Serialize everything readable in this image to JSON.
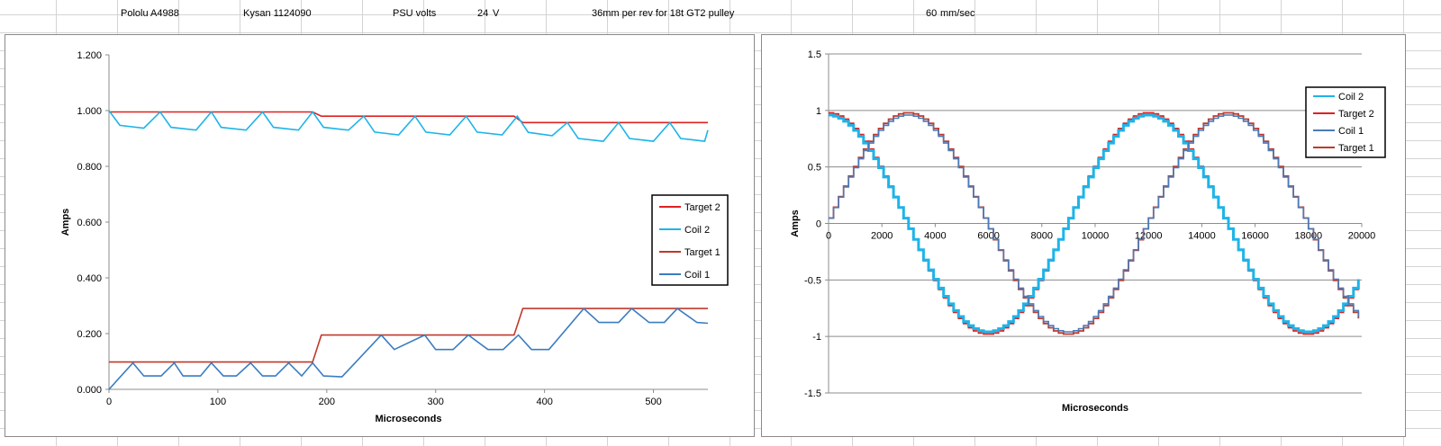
{
  "header": {
    "driver": "Pololu A4988",
    "motor": "Kysan 1124090",
    "psu_label": "PSU volts",
    "psu_value": "24",
    "psu_unit": "V",
    "pulley_note": "36mm per rev for 18t GT2 pulley",
    "speed_value": "60",
    "speed_unit": "mm/sec"
  },
  "chart_data": [
    {
      "type": "line",
      "title": "",
      "xlabel": "Microseconds",
      "ylabel": "Amps",
      "xlim": [
        0,
        550
      ],
      "ylim": [
        0,
        1.2
      ],
      "xticks": [
        0,
        100,
        200,
        300,
        400,
        500
      ],
      "xtick_labels": [
        "0",
        "100",
        "200",
        "300",
        "400",
        "500"
      ],
      "yticks": [
        0,
        0.2,
        0.4,
        0.6,
        0.8,
        1.0,
        1.2
      ],
      "ytick_labels": [
        "0.000",
        "0.200",
        "0.400",
        "0.600",
        "0.800",
        "1.000",
        "1.200"
      ],
      "grid": false,
      "legend_position": "right",
      "series": [
        {
          "name": "Target 2",
          "color": "#e02020",
          "x": [
            0,
            187,
            195,
            372,
            380,
            550
          ],
          "y": [
            0.995,
            0.995,
            0.98,
            0.98,
            0.957,
            0.957
          ]
        },
        {
          "name": "Coil 2",
          "color": "#1eb4e8",
          "x": [
            0,
            10,
            32,
            47,
            57,
            80,
            94,
            103,
            126,
            141,
            151,
            174,
            187,
            197,
            220,
            234,
            244,
            266,
            281,
            291,
            313,
            328,
            338,
            361,
            375,
            385,
            407,
            421,
            431,
            454,
            468,
            478,
            500,
            515,
            525,
            547,
            550
          ],
          "y": [
            1.0,
            0.947,
            0.937,
            0.995,
            0.94,
            0.93,
            0.995,
            0.94,
            0.93,
            0.995,
            0.94,
            0.93,
            0.995,
            0.94,
            0.93,
            0.98,
            0.923,
            0.913,
            0.98,
            0.923,
            0.913,
            0.98,
            0.923,
            0.913,
            0.98,
            0.922,
            0.91,
            0.957,
            0.9,
            0.89,
            0.957,
            0.9,
            0.89,
            0.957,
            0.9,
            0.89,
            0.93
          ]
        },
        {
          "name": "Target 1",
          "color": "#c0392b",
          "x": [
            0,
            187,
            195,
            372,
            380,
            550
          ],
          "y": [
            0.098,
            0.098,
            0.195,
            0.195,
            0.29,
            0.29
          ]
        },
        {
          "name": "Coil 1",
          "color": "#3a7cc0",
          "x": [
            0,
            22,
            32,
            48,
            60,
            68,
            84,
            94,
            105,
            117,
            130,
            141,
            153,
            165,
            177,
            187,
            197,
            214,
            250,
            262,
            290,
            300,
            316,
            330,
            348,
            362,
            376,
            388,
            404,
            436,
            450,
            468,
            480,
            496,
            510,
            522,
            540,
            550
          ],
          "y": [
            0.0,
            0.095,
            0.048,
            0.048,
            0.095,
            0.048,
            0.048,
            0.095,
            0.048,
            0.048,
            0.095,
            0.048,
            0.048,
            0.095,
            0.048,
            0.095,
            0.048,
            0.045,
            0.195,
            0.143,
            0.195,
            0.143,
            0.143,
            0.195,
            0.143,
            0.143,
            0.195,
            0.143,
            0.143,
            0.29,
            0.24,
            0.24,
            0.29,
            0.24,
            0.24,
            0.29,
            0.24,
            0.237
          ]
        }
      ]
    },
    {
      "type": "line",
      "title": "",
      "xlabel": "Microseconds",
      "ylabel": "Amps",
      "xlim": [
        0,
        20000
      ],
      "ylim": [
        -1.5,
        1.5
      ],
      "xticks": [
        0,
        2000,
        4000,
        6000,
        8000,
        10000,
        12000,
        14000,
        16000,
        18000,
        20000
      ],
      "xtick_labels": [
        "0",
        "2000",
        "4000",
        "6000",
        "8000",
        "10000",
        "12000",
        "14000",
        "16000",
        "18000",
        "20000"
      ],
      "yticks": [
        -1.5,
        -1,
        -0.5,
        0,
        0.5,
        1,
        1.5
      ],
      "ytick_labels": [
        "-1.5",
        "-1",
        "-0.5",
        "0",
        "0.5",
        "1",
        "1.5"
      ],
      "grid": true,
      "legend_position": "top-right",
      "waveform": {
        "period_us": 12000,
        "step_us": 187.5,
        "coil_amplitude": 0.96,
        "target_amplitude": 0.98
      },
      "series": [
        {
          "name": "Coil 2",
          "color": "#1eb4e8",
          "phase": "cos"
        },
        {
          "name": "Target 2",
          "color": "#e02020",
          "phase": "cos"
        },
        {
          "name": "Coil 1",
          "color": "#4a7ab8",
          "phase": "sin"
        },
        {
          "name": "Target 1",
          "color": "#c0392b",
          "phase": "sin"
        }
      ]
    }
  ]
}
